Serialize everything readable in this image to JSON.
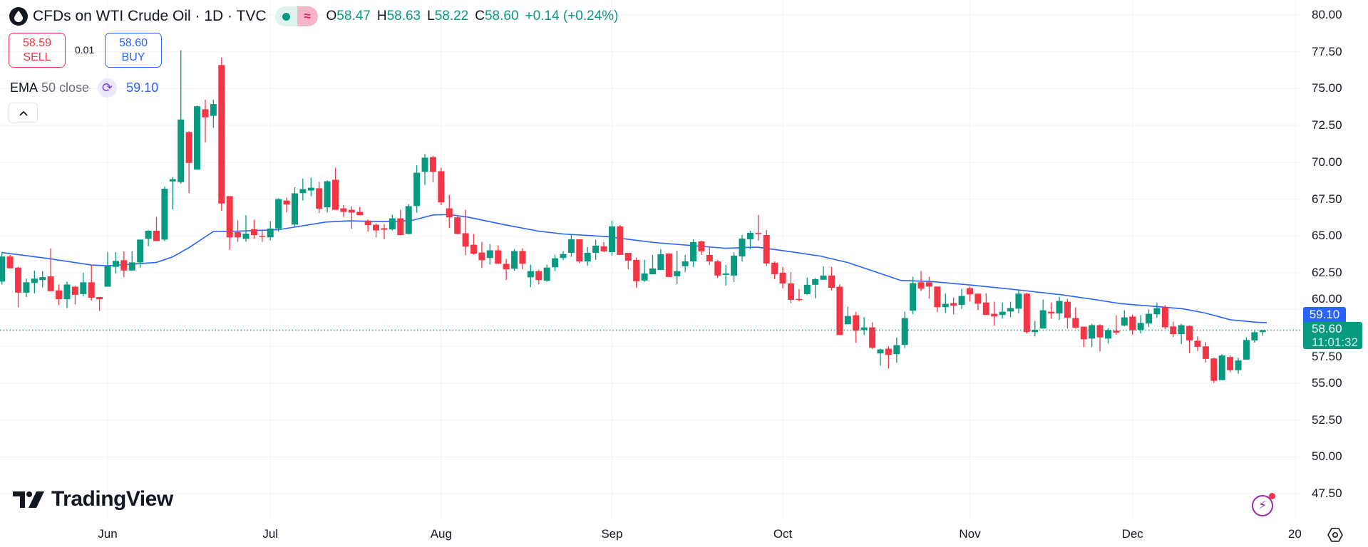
{
  "header": {
    "symbol_title": "CFDs on WTI Crude Oil · 1D · TVC",
    "symbol_icon": "oil-drop-icon",
    "status_icons": [
      "market-open-dot-icon",
      "delayed-data-icon"
    ],
    "ohlc": {
      "o_label": "O",
      "o": "58.47",
      "h_label": "H",
      "h": "58.63",
      "l_label": "L",
      "l": "58.22",
      "c_label": "C",
      "c": "58.60",
      "change": "+0.14 (+0.24%)"
    }
  },
  "trade": {
    "sell_price": "58.59",
    "sell_label": "SELL",
    "spread": "0.01",
    "buy_price": "58.60",
    "buy_label": "BUY"
  },
  "indicator": {
    "name": "EMA",
    "args": "50 close",
    "value": "59.10",
    "icon": "refresh-icon"
  },
  "collapse_icon": "chevron-up-icon",
  "price_axis": {
    "ticks": [
      "80.00",
      "77.50",
      "75.00",
      "72.50",
      "70.00",
      "67.50",
      "65.00",
      "62.50",
      "60.00",
      "57.50",
      "55.00",
      "52.50",
      "50.00",
      "47.50"
    ]
  },
  "price_labels": {
    "ema": "59.10",
    "last": "58.60",
    "countdown": "11:01:32"
  },
  "logo": "TradingView",
  "colors": {
    "up": "#089981",
    "down": "#f23645",
    "ema": "#2962ff",
    "grid": "#f0f3fa",
    "text": "#131722"
  },
  "chart_data": {
    "type": "candlestick",
    "ylim": [
      46.5,
      80.5
    ],
    "grid": true,
    "x_ticks": [
      {
        "label": "Jun",
        "index": 13
      },
      {
        "label": "Jul",
        "index": 33
      },
      {
        "label": "Aug",
        "index": 54
      },
      {
        "label": "Sep",
        "index": 75
      },
      {
        "label": "Oct",
        "index": 96
      },
      {
        "label": "Nov",
        "index": 119
      },
      {
        "label": "Dec",
        "index": 139
      },
      {
        "label": "20",
        "index": 159
      }
    ],
    "last_price": 58.6,
    "candles_ohlc": [
      [
        61.9,
        63.9,
        61.7,
        63.6
      ],
      [
        63.6,
        63.7,
        62.8,
        62.8
      ],
      [
        62.85,
        62.9,
        60.15,
        61.15
      ],
      [
        61.15,
        62.1,
        60.85,
        61.85
      ],
      [
        61.8,
        62.65,
        61.1,
        62.1
      ],
      [
        62.0,
        62.6,
        61.5,
        62.2
      ],
      [
        62.25,
        64.15,
        61.25,
        61.25
      ],
      [
        61.3,
        61.7,
        60.3,
        60.7
      ],
      [
        60.7,
        61.9,
        60.1,
        61.7
      ],
      [
        61.55,
        61.6,
        60.35,
        61.0
      ],
      [
        61.05,
        62.5,
        60.9,
        61.85
      ],
      [
        61.85,
        63.05,
        60.6,
        60.8
      ],
      [
        60.85,
        60.85,
        59.9,
        60.7
      ],
      [
        61.55,
        63.9,
        61.55,
        62.95
      ],
      [
        62.9,
        63.9,
        62.45,
        63.3
      ],
      [
        63.35,
        63.95,
        62.2,
        62.65
      ],
      [
        62.65,
        63.95,
        62.65,
        63.2
      ],
      [
        63.2,
        64.75,
        62.85,
        64.75
      ],
      [
        64.8,
        65.4,
        64.3,
        65.35
      ],
      [
        65.35,
        66.3,
        64.65,
        64.65
      ],
      [
        64.75,
        68.35,
        64.65,
        68.2
      ],
      [
        68.7,
        69.0,
        66.8,
        68.85
      ],
      [
        68.65,
        77.6,
        68.55,
        72.9
      ],
      [
        72.05,
        72.1,
        67.9,
        69.95
      ],
      [
        69.5,
        73.85,
        69.5,
        73.8
      ],
      [
        73.6,
        74.25,
        71.35,
        73.05
      ],
      [
        73.15,
        74.25,
        72.35,
        73.95
      ],
      [
        76.6,
        77.1,
        66.7,
        67.2
      ],
      [
        67.7,
        67.7,
        64.05,
        64.9
      ],
      [
        65.25,
        66.05,
        64.6,
        64.9
      ],
      [
        64.8,
        66.4,
        64.6,
        65.15
      ],
      [
        65.45,
        66.1,
        64.8,
        65.05
      ],
      [
        65.0,
        65.35,
        64.6,
        64.95
      ],
      [
        64.9,
        66.0,
        64.7,
        65.5
      ],
      [
        65.5,
        67.55,
        65.3,
        67.5
      ],
      [
        67.4,
        67.6,
        66.6,
        67.13
      ],
      [
        65.77,
        68.3,
        65.6,
        67.89
      ],
      [
        67.9,
        68.9,
        67.4,
        68.18
      ],
      [
        68.08,
        68.95,
        67.7,
        68.27
      ],
      [
        68.23,
        68.66,
        66.55,
        66.84
      ],
      [
        66.94,
        68.76,
        66.58,
        68.71
      ],
      [
        68.81,
        69.63,
        66.77,
        66.77
      ],
      [
        66.87,
        67.1,
        66.29,
        66.63
      ],
      [
        66.77,
        67.0,
        65.48,
        66.58
      ],
      [
        66.63,
        66.97,
        66.4,
        66.4
      ],
      [
        66.02,
        66.11,
        65.29,
        65.73
      ],
      [
        65.76,
        65.85,
        64.9,
        65.37
      ],
      [
        65.52,
        65.8,
        64.76,
        65.42
      ],
      [
        65.44,
        66.44,
        65.37,
        66.19
      ],
      [
        66.19,
        66.77,
        65.05,
        65.05
      ],
      [
        65.13,
        67.16,
        65.1,
        67.02
      ],
      [
        67.03,
        69.79,
        66.58,
        69.29
      ],
      [
        69.35,
        70.55,
        68.47,
        70.31
      ],
      [
        70.35,
        70.45,
        68.63,
        69.35
      ],
      [
        69.39,
        69.63,
        67.08,
        67.27
      ],
      [
        66.87,
        67.79,
        65.53,
        66.26
      ],
      [
        66.26,
        66.42,
        65.1,
        65.13
      ],
      [
        65.18,
        66.77,
        63.68,
        64.27
      ],
      [
        64.4,
        65.13,
        63.73,
        63.79
      ],
      [
        63.87,
        64.6,
        62.82,
        63.35
      ],
      [
        63.5,
        64.45,
        63.06,
        64.02
      ],
      [
        64.02,
        64.35,
        63.11,
        63.11
      ],
      [
        63.1,
        63.44,
        62.0,
        62.73
      ],
      [
        62.77,
        64.11,
        62.63,
        63.97
      ],
      [
        63.97,
        64.16,
        62.73,
        63.11
      ],
      [
        62.19,
        63.05,
        61.52,
        62.61
      ],
      [
        62.61,
        62.71,
        61.71,
        62.0
      ],
      [
        61.95,
        63.05,
        61.9,
        62.85
      ],
      [
        62.87,
        63.73,
        62.6,
        63.48
      ],
      [
        63.5,
        63.97,
        63.35,
        63.77
      ],
      [
        63.85,
        65.08,
        63.58,
        64.77
      ],
      [
        64.77,
        64.77,
        63.15,
        63.27
      ],
      [
        63.27,
        64.24,
        62.98,
        63.85
      ],
      [
        63.85,
        64.73,
        63.37,
        64.34
      ],
      [
        64.29,
        64.58,
        63.9,
        63.95
      ],
      [
        63.9,
        66.03,
        63.66,
        65.65
      ],
      [
        65.65,
        65.74,
        63.71,
        63.71
      ],
      [
        63.85,
        63.85,
        62.74,
        63.32
      ],
      [
        63.37,
        63.52,
        61.48,
        61.92
      ],
      [
        61.97,
        63.37,
        61.87,
        62.45
      ],
      [
        62.4,
        63.71,
        62.4,
        62.79
      ],
      [
        62.69,
        64.1,
        62.69,
        63.76
      ],
      [
        63.81,
        63.81,
        62.21,
        62.21
      ],
      [
        62.26,
        64.0,
        61.73,
        62.6
      ],
      [
        62.94,
        63.71,
        62.55,
        63.27
      ],
      [
        63.27,
        64.77,
        62.89,
        64.58
      ],
      [
        64.63,
        64.68,
        63.71,
        63.95
      ],
      [
        63.71,
        64.29,
        63.03,
        63.27
      ],
      [
        63.27,
        63.37,
        62.16,
        62.31
      ],
      [
        62.35,
        63.03,
        61.63,
        62.45
      ],
      [
        62.31,
        63.9,
        61.87,
        63.66
      ],
      [
        63.61,
        65.06,
        63.27,
        64.82
      ],
      [
        64.77,
        65.35,
        64.1,
        65.21
      ],
      [
        65.2,
        66.42,
        64.68,
        65.18
      ],
      [
        65.06,
        65.4,
        62.98,
        63.13
      ],
      [
        63.18,
        63.27,
        62.06,
        62.4
      ],
      [
        62.5,
        62.89,
        61.44,
        61.77
      ],
      [
        61.77,
        62.55,
        60.42,
        60.66
      ],
      [
        60.72,
        61.4,
        60.56,
        60.69
      ],
      [
        61.05,
        62.16,
        61.0,
        61.68
      ],
      [
        61.68,
        62.13,
        60.76,
        62.06
      ],
      [
        62.02,
        62.94,
        62.02,
        62.31
      ],
      [
        62.31,
        62.89,
        61.3,
        61.48
      ],
      [
        61.55,
        61.71,
        58.27,
        58.27
      ],
      [
        59.0,
        60.19,
        59.0,
        59.56
      ],
      [
        59.61,
        59.85,
        57.74,
        58.56
      ],
      [
        58.61,
        59.47,
        58.27,
        58.79
      ],
      [
        58.79,
        59.13,
        57.31,
        57.4
      ],
      [
        57.02,
        57.35,
        56.19,
        57.29
      ],
      [
        57.34,
        57.5,
        56.0,
        56.92
      ],
      [
        56.97,
        58.11,
        56.39,
        57.58
      ],
      [
        57.6,
        59.85,
        57.4,
        59.42
      ],
      [
        59.92,
        62.23,
        59.68,
        61.79
      ],
      [
        61.85,
        62.61,
        61.26,
        61.42
      ],
      [
        61.85,
        62.23,
        60.74,
        61.56
      ],
      [
        61.56,
        61.56,
        59.82,
        60.16
      ],
      [
        60.16,
        61.08,
        59.77,
        60.39
      ],
      [
        60.44,
        60.82,
        59.68,
        60.26
      ],
      [
        60.31,
        61.4,
        60.05,
        60.92
      ],
      [
        61.45,
        61.56,
        60.55,
        61.03
      ],
      [
        61.08,
        61.08,
        59.97,
        60.4
      ],
      [
        60.48,
        61.11,
        59.63,
        59.63
      ],
      [
        59.71,
        60.53,
        58.9,
        59.53
      ],
      [
        59.63,
        60.48,
        59.39,
        59.85
      ],
      [
        59.87,
        60.53,
        59.48,
        60.1
      ],
      [
        60.06,
        61.31,
        59.73,
        61.08
      ],
      [
        61.08,
        61.13,
        58.37,
        58.47
      ],
      [
        58.47,
        59.23,
        58.18,
        58.63
      ],
      [
        58.71,
        60.68,
        58.71,
        59.95
      ],
      [
        59.85,
        60.48,
        59.39,
        59.73
      ],
      [
        59.73,
        60.87,
        59.29,
        60.58
      ],
      [
        60.53,
        60.73,
        58.71,
        59.44
      ],
      [
        59.42,
        60.15,
        58.71,
        58.76
      ],
      [
        58.84,
        58.84,
        57.45,
        57.98
      ],
      [
        58.03,
        59.03,
        57.45,
        58.94
      ],
      [
        58.94,
        59.0,
        57.16,
        58.11
      ],
      [
        58.03,
        58.74,
        57.69,
        58.6
      ],
      [
        58.56,
        59.62,
        58.29,
        58.43
      ],
      [
        58.91,
        59.95,
        58.86,
        59.47
      ],
      [
        59.52,
        59.66,
        58.29,
        58.59
      ],
      [
        58.62,
        59.62,
        58.38,
        59.09
      ],
      [
        59.05,
        60.0,
        58.81,
        59.71
      ],
      [
        59.68,
        60.48,
        59.44,
        60.1
      ],
      [
        60.14,
        60.29,
        58.67,
        58.8
      ],
      [
        58.85,
        59.18,
        58.14,
        58.33
      ],
      [
        58.33,
        59.04,
        57.66,
        58.94
      ],
      [
        58.89,
        58.94,
        57.04,
        57.9
      ],
      [
        57.88,
        58.17,
        57.18,
        57.47
      ],
      [
        57.5,
        57.79,
        56.41,
        56.65
      ],
      [
        56.68,
        56.73,
        55.02,
        55.16
      ],
      [
        55.21,
        56.97,
        55.21,
        56.88
      ],
      [
        56.78,
        56.88,
        55.74,
        55.88
      ],
      [
        55.88,
        56.73,
        55.64,
        56.54
      ],
      [
        56.6,
        58.13,
        56.6,
        57.93
      ],
      [
        57.9,
        58.56,
        57.76,
        58.46
      ],
      [
        58.47,
        58.63,
        58.22,
        58.6
      ]
    ],
    "ema50": [
      [
        0,
        63.87
      ],
      [
        5.6,
        63.47
      ],
      [
        11,
        63.02
      ],
      [
        13,
        62.97
      ],
      [
        19,
        63.2
      ],
      [
        21,
        63.58
      ],
      [
        23,
        64.2
      ],
      [
        26,
        65.3
      ],
      [
        29,
        65.32
      ],
      [
        34,
        65.42
      ],
      [
        39.8,
        65.94
      ],
      [
        42.7,
        66.02
      ],
      [
        48,
        65.97
      ],
      [
        50.4,
        66.05
      ],
      [
        53,
        66.42
      ],
      [
        55,
        66.45
      ],
      [
        57.4,
        66.26
      ],
      [
        61.7,
        65.77
      ],
      [
        66,
        65.32
      ],
      [
        69,
        65.13
      ],
      [
        74.4,
        64.95
      ],
      [
        80.2,
        64.55
      ],
      [
        84.6,
        64.35
      ],
      [
        89,
        64.16
      ],
      [
        92.8,
        64.24
      ],
      [
        96.3,
        63.98
      ],
      [
        100.6,
        63.63
      ],
      [
        104,
        63.19
      ],
      [
        110.5,
        61.98
      ],
      [
        114.3,
        61.9
      ],
      [
        119.2,
        61.66
      ],
      [
        125.3,
        61.31
      ],
      [
        130.3,
        61.0
      ],
      [
        134.6,
        60.66
      ],
      [
        137.5,
        60.4
      ],
      [
        142.3,
        60.19
      ],
      [
        145.2,
        60.05
      ],
      [
        148,
        59.76
      ],
      [
        151,
        59.31
      ],
      [
        154,
        59.15
      ],
      [
        155.5,
        59.1
      ]
    ]
  }
}
